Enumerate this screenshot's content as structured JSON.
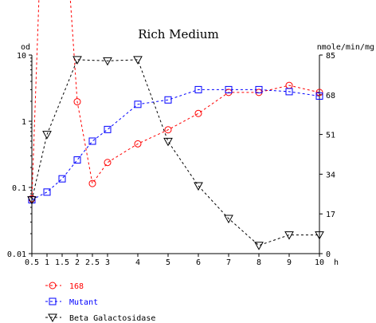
{
  "chart_data": {
    "type": "line",
    "title": "Rich Medium",
    "left_axis": {
      "unit": "od",
      "scale": "log",
      "range": [
        0.01,
        10
      ],
      "ticks": [
        {
          "value": 10,
          "label": "10"
        },
        {
          "value": 1,
          "label": "1"
        },
        {
          "value": 0.1,
          "label": "0.1"
        },
        {
          "value": 0.01,
          "label": "0.01"
        }
      ]
    },
    "right_axis": {
      "unit": "nmole/min/mg",
      "scale": "linear",
      "range": [
        0,
        85
      ],
      "ticks": [
        {
          "value": 85,
          "label": "85"
        },
        {
          "value": 68,
          "label": "68"
        },
        {
          "value": 51,
          "label": "51"
        },
        {
          "value": 34,
          "label": "34"
        },
        {
          "value": 17,
          "label": "17"
        },
        {
          "value": 0,
          "label": "0"
        }
      ]
    },
    "x_axis": {
      "unit": "h",
      "range": [
        0.5,
        10
      ],
      "ticks": [
        {
          "value": 0.5,
          "label": "0.5"
        },
        {
          "value": 1,
          "label": "1"
        },
        {
          "value": 1.5,
          "label": "1.5"
        },
        {
          "value": 2,
          "label": "2"
        },
        {
          "value": 2.5,
          "label": "2.5"
        },
        {
          "value": 3,
          "label": "3"
        },
        {
          "value": 4,
          "label": "4"
        },
        {
          "value": 5,
          "label": "5"
        },
        {
          "value": 6,
          "label": "6"
        },
        {
          "value": 7,
          "label": "7"
        },
        {
          "value": 8,
          "label": "8"
        },
        {
          "value": 9,
          "label": "9"
        },
        {
          "value": 10,
          "label": "10"
        }
      ]
    },
    "series": [
      {
        "name": "168",
        "axis": "right",
        "color": "#ff0000",
        "marker": "circle",
        "points": [
          {
            "x": 0.5,
            "y": 23.5
          },
          {
            "x": 2,
            "y": 65
          },
          {
            "x": 2.5,
            "y": 30
          },
          {
            "x": 3,
            "y": 39
          },
          {
            "x": 4,
            "y": 47
          },
          {
            "x": 5,
            "y": 53
          },
          {
            "x": 6,
            "y": 60
          },
          {
            "x": 7,
            "y": 69
          },
          {
            "x": 8,
            "y": 69
          },
          {
            "x": 9,
            "y": 72
          },
          {
            "x": 10,
            "y": 69
          }
        ],
        "line_extends_above_chart_between": [
          0.5,
          2
        ]
      },
      {
        "name": "Mutant",
        "axis": "left",
        "color": "#0000ff",
        "marker": "square",
        "points": [
          {
            "x": 0.5,
            "y": 0.065
          },
          {
            "x": 1,
            "y": 0.085
          },
          {
            "x": 1.5,
            "y": 0.135
          },
          {
            "x": 2,
            "y": 0.26
          },
          {
            "x": 2.5,
            "y": 0.5
          },
          {
            "x": 3,
            "y": 0.75
          },
          {
            "x": 4,
            "y": 1.8
          },
          {
            "x": 5,
            "y": 2.1
          },
          {
            "x": 6,
            "y": 3.0
          },
          {
            "x": 7,
            "y": 3.0
          },
          {
            "x": 8,
            "y": 3.0
          },
          {
            "x": 9,
            "y": 2.8
          },
          {
            "x": 10,
            "y": 2.4
          }
        ]
      },
      {
        "name": "Beta Galactosidase",
        "axis": "right",
        "color": "#000000",
        "marker": "triangle-down",
        "points": [
          {
            "x": 0.5,
            "y": 23
          },
          {
            "x": 1,
            "y": 51
          },
          {
            "x": 2,
            "y": 83
          },
          {
            "x": 3,
            "y": 82.5
          },
          {
            "x": 4,
            "y": 83
          },
          {
            "x": 5,
            "y": 48
          },
          {
            "x": 6,
            "y": 29
          },
          {
            "x": 7,
            "y": 15
          },
          {
            "x": 8,
            "y": 3.5
          },
          {
            "x": 9,
            "y": 8
          },
          {
            "x": 10,
            "y": 8
          }
        ]
      }
    ],
    "legend": {
      "placement": "bottom-left",
      "entries": [
        {
          "label": "168",
          "color": "#ff0000",
          "marker": "circle"
        },
        {
          "label": "Mutant",
          "color": "#0000ff",
          "marker": "square"
        },
        {
          "label": "Beta Galactosidase",
          "color": "#000000",
          "marker": "triangle-down"
        }
      ]
    },
    "grid": false
  }
}
